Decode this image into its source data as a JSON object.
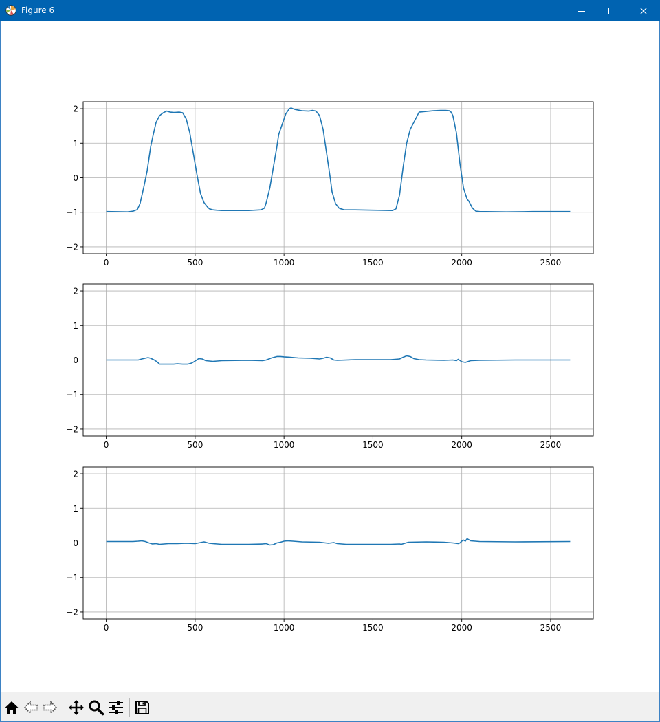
{
  "window": {
    "title": "Figure 6",
    "controls": [
      "minimize",
      "maximize",
      "close"
    ]
  },
  "toolbar": {
    "tools": [
      "home-icon",
      "back-arrow-icon",
      "forward-arrow-icon",
      "pan-icon",
      "zoom-icon",
      "configure-subplots-icon",
      "save-icon"
    ]
  },
  "colors": {
    "titlebar": "#0063b1",
    "line": "#1f77b4",
    "grid": "#b0b0b0",
    "toolbar": "#f0f0f0"
  },
  "chart_data": [
    {
      "type": "line",
      "title": "",
      "xlabel": "",
      "ylabel": "",
      "xlim": [
        -130,
        2740
      ],
      "ylim": [
        -2.2,
        2.2
      ],
      "xticks": [
        0,
        500,
        1000,
        1500,
        2000,
        2500
      ],
      "yticks": [
        -2,
        -1,
        0,
        1,
        2
      ],
      "xtick_labels": [
        "0",
        "500",
        "1000",
        "1500",
        "2000",
        "2500"
      ],
      "ytick_labels": [
        "−2",
        "−1",
        "0",
        "1",
        "2"
      ],
      "grid": true,
      "series": [
        {
          "x": [
            0,
            120,
            150,
            175,
            190,
            210,
            230,
            250,
            260,
            280,
            300,
            320,
            340,
            360,
            380,
            410,
            430,
            450,
            470,
            490,
            510,
            530,
            550,
            570,
            580,
            600,
            620,
            650,
            700,
            800,
            870,
            890,
            900,
            920,
            940,
            960,
            970,
            990,
            1010,
            1030,
            1040,
            1060,
            1080,
            1100,
            1140,
            1160,
            1180,
            1200,
            1220,
            1240,
            1260,
            1270,
            1290,
            1310,
            1320,
            1340,
            1400,
            1500,
            1610,
            1630,
            1650,
            1670,
            1690,
            1710,
            1730,
            1760,
            1800,
            1840,
            1880,
            1910,
            1930,
            1940,
            1950,
            1970,
            1990,
            2010,
            2030,
            2040,
            2060,
            2080,
            2100,
            2250,
            2400,
            2610
          ],
          "y": [
            -0.98,
            -0.99,
            -0.97,
            -0.92,
            -0.75,
            -0.3,
            0.2,
            0.9,
            1.15,
            1.6,
            1.8,
            1.88,
            1.93,
            1.9,
            1.89,
            1.9,
            1.88,
            1.7,
            1.3,
            0.7,
            0.1,
            -0.45,
            -0.72,
            -0.85,
            -0.9,
            -0.93,
            -0.94,
            -0.95,
            -0.95,
            -0.95,
            -0.93,
            -0.88,
            -0.72,
            -0.3,
            0.3,
            0.9,
            1.25,
            1.55,
            1.85,
            2.0,
            2.02,
            1.98,
            1.96,
            1.94,
            1.93,
            1.95,
            1.93,
            1.8,
            1.4,
            0.7,
            0.0,
            -0.4,
            -0.75,
            -0.88,
            -0.9,
            -0.93,
            -0.93,
            -0.94,
            -0.95,
            -0.9,
            -0.5,
            0.3,
            1.0,
            1.4,
            1.6,
            1.9,
            1.92,
            1.94,
            1.95,
            1.95,
            1.94,
            1.9,
            1.8,
            1.3,
            0.4,
            -0.3,
            -0.62,
            -0.68,
            -0.88,
            -0.97,
            -0.98,
            -0.99,
            -0.98,
            -0.98
          ]
        }
      ]
    },
    {
      "type": "line",
      "title": "",
      "xlabel": "",
      "ylabel": "",
      "xlim": [
        -130,
        2740
      ],
      "ylim": [
        -2.2,
        2.2
      ],
      "xticks": [
        0,
        500,
        1000,
        1500,
        2000,
        2500
      ],
      "yticks": [
        -2,
        -1,
        0,
        1,
        2
      ],
      "xtick_labels": [
        "0",
        "500",
        "1000",
        "1500",
        "2000",
        "2500"
      ],
      "ytick_labels": [
        "−2",
        "−1",
        "0",
        "1",
        "2"
      ],
      "grid": true,
      "series": [
        {
          "x": [
            0,
            100,
            180,
            200,
            235,
            250,
            270,
            285,
            300,
            330,
            360,
            380,
            400,
            430,
            460,
            480,
            500,
            520,
            540,
            560,
            600,
            650,
            800,
            880,
            900,
            930,
            960,
            980,
            1000,
            1030,
            1080,
            1150,
            1200,
            1220,
            1240,
            1260,
            1280,
            1300,
            1400,
            1500,
            1600,
            1650,
            1670,
            1690,
            1710,
            1730,
            1760,
            1800,
            1900,
            1950,
            1970,
            1980,
            2000,
            2020,
            2050,
            2100,
            2300,
            2610
          ],
          "y": [
            0.0,
            0.0,
            0.0,
            0.03,
            0.07,
            0.05,
            0.0,
            -0.05,
            -0.12,
            -0.12,
            -0.12,
            -0.12,
            -0.11,
            -0.12,
            -0.12,
            -0.09,
            -0.03,
            0.04,
            0.03,
            -0.02,
            -0.04,
            -0.02,
            -0.01,
            -0.02,
            0.0,
            0.06,
            0.1,
            0.1,
            0.09,
            0.08,
            0.06,
            0.05,
            0.03,
            0.05,
            0.08,
            0.06,
            0.0,
            -0.01,
            0.01,
            0.01,
            0.01,
            0.03,
            0.08,
            0.12,
            0.1,
            0.04,
            0.01,
            0.0,
            -0.01,
            0.0,
            -0.02,
            0.02,
            -0.05,
            -0.07,
            -0.02,
            -0.01,
            0.0,
            0.0
          ]
        }
      ]
    },
    {
      "type": "line",
      "title": "",
      "xlabel": "",
      "ylabel": "",
      "xlim": [
        -130,
        2740
      ],
      "ylim": [
        -2.2,
        2.2
      ],
      "xticks": [
        0,
        500,
        1000,
        1500,
        2000,
        2500
      ],
      "yticks": [
        -2,
        -1,
        0,
        1,
        2
      ],
      "xtick_labels": [
        "0",
        "500",
        "1000",
        "1500",
        "2000",
        "2500"
      ],
      "ytick_labels": [
        "−2",
        "−1",
        "0",
        "1",
        "2"
      ],
      "grid": true,
      "series": [
        {
          "x": [
            0,
            100,
            150,
            180,
            200,
            220,
            240,
            260,
            280,
            300,
            350,
            400,
            450,
            500,
            520,
            550,
            580,
            600,
            650,
            700,
            800,
            880,
            900,
            920,
            940,
            960,
            980,
            1000,
            1020,
            1050,
            1100,
            1200,
            1250,
            1280,
            1300,
            1350,
            1400,
            1500,
            1600,
            1650,
            1660,
            1700,
            1800,
            1900,
            1950,
            1980,
            1990,
            2000,
            2010,
            2020,
            2030,
            2050,
            2100,
            2300,
            2610
          ],
          "y": [
            0.04,
            0.04,
            0.04,
            0.05,
            0.06,
            0.04,
            0.0,
            -0.03,
            -0.02,
            -0.04,
            -0.02,
            -0.02,
            -0.01,
            -0.02,
            0.0,
            0.03,
            -0.01,
            -0.02,
            -0.04,
            -0.04,
            -0.04,
            -0.03,
            -0.02,
            -0.06,
            -0.05,
            0.0,
            0.02,
            0.05,
            0.06,
            0.05,
            0.03,
            0.02,
            -0.01,
            0.01,
            -0.02,
            -0.04,
            -0.04,
            -0.04,
            -0.04,
            -0.03,
            -0.04,
            0.02,
            0.03,
            0.02,
            0.0,
            -0.02,
            0.0,
            0.05,
            0.08,
            0.05,
            0.12,
            0.06,
            0.04,
            0.03,
            0.04
          ]
        }
      ]
    }
  ]
}
